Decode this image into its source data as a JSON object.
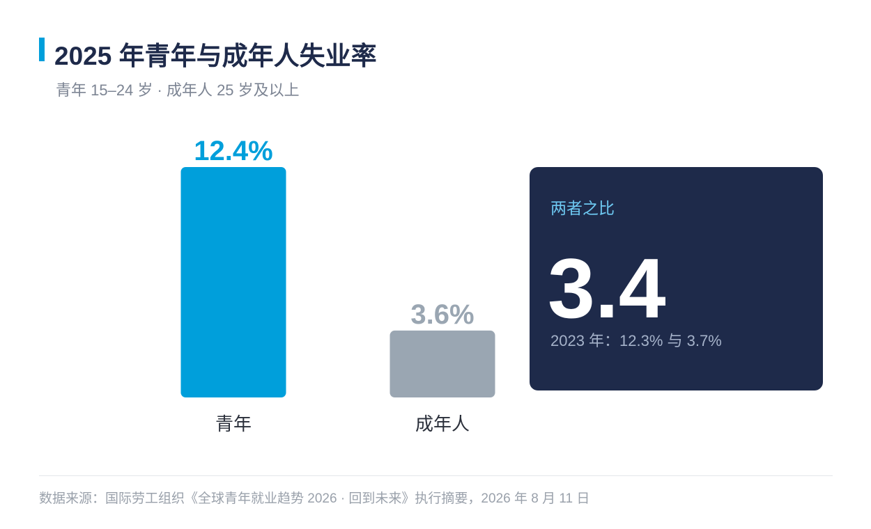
{
  "title": "2025 年青年与成年人失业率",
  "subtitle": "青年 15–24 岁 · 成年人 25 岁及以上",
  "colors": {
    "accent": "#009fdb",
    "youth_bar": "#009fdb",
    "adult_bar": "#9aa6b2",
    "card_bg": "#1e2a4a",
    "card_label": "#6ec9f2",
    "title": "#1e2a4a"
  },
  "chart_data": {
    "type": "bar",
    "categories": [
      "青年",
      "成年人"
    ],
    "values": [
      12.4,
      3.6
    ],
    "value_labels": [
      "12.4%",
      "3.6%"
    ],
    "unit": "%"
  },
  "stat_card": {
    "label": "两者之比",
    "value": "3.4",
    "note": "2023 年：12.3% 与 3.7%"
  },
  "source": "数据来源：国际劳工组织《全球青年就业趋势 2026 · 回到未来》执行摘要，2026 年 8 月 11 日"
}
